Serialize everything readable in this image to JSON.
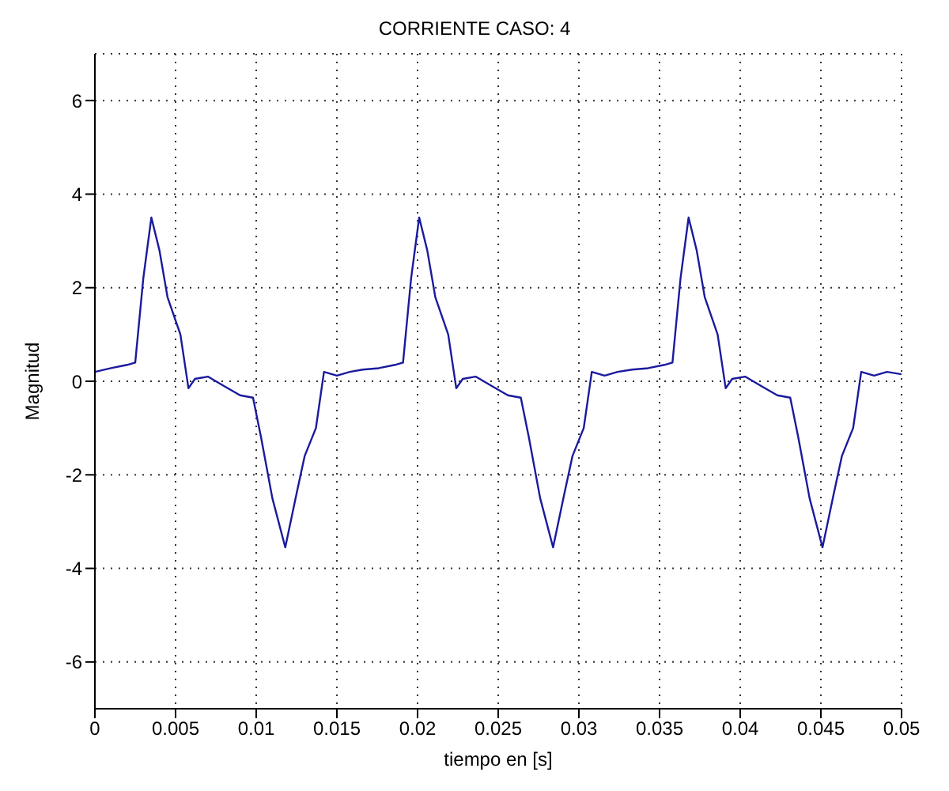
{
  "chart_data": {
    "type": "line",
    "title": "CORRIENTE CASO: 4",
    "xlabel": "tiempo en [s]",
    "ylabel": "Magnitud",
    "xlim": [
      0,
      0.05
    ],
    "xticks": [
      0,
      0.005,
      0.01,
      0.015,
      0.02,
      0.025,
      0.03,
      0.035,
      0.04,
      0.045,
      0.05
    ],
    "ylim": [
      -7,
      7
    ],
    "yticks": [
      -6,
      -4,
      -2,
      0,
      2,
      4,
      6
    ],
    "grid": true,
    "legend": false,
    "x": [
      0,
      0.001,
      0.002,
      0.0025,
      0.003,
      0.0035,
      0.004,
      0.0045,
      0.005,
      0.0053,
      0.0058,
      0.0062,
      0.007,
      0.008,
      0.009,
      0.0098,
      0.0103,
      0.011,
      0.0118,
      0.0125,
      0.013,
      0.0137,
      0.0142,
      0.015,
      0.0158,
      0.0166,
      0.0176,
      0.0186,
      0.0191,
      0.0196,
      0.0201,
      0.0206,
      0.0211,
      0.0216,
      0.0219,
      0.0224,
      0.0228,
      0.0236,
      0.0246,
      0.0256,
      0.0264,
      0.0269,
      0.0276,
      0.0284,
      0.0291,
      0.0296,
      0.0303,
      0.0308,
      0.0316,
      0.0324,
      0.0333,
      0.0343,
      0.0353,
      0.0358,
      0.0363,
      0.0368,
      0.0373,
      0.0378,
      0.0383,
      0.0386,
      0.0391,
      0.0395,
      0.0403,
      0.0413,
      0.0423,
      0.0431,
      0.0436,
      0.0443,
      0.0451,
      0.0458,
      0.0463,
      0.047,
      0.0475,
      0.0483,
      0.0491,
      0.05
    ],
    "series": [
      {
        "color": "#1a1a9e",
        "values": [
          0.2,
          0.28,
          0.35,
          0.4,
          2.2,
          3.5,
          2.8,
          1.8,
          1.3,
          1.0,
          -0.15,
          0.05,
          0.1,
          -0.1,
          -0.3,
          -0.35,
          -1.2,
          -2.5,
          -3.55,
          -2.4,
          -1.6,
          -1.0,
          0.2,
          0.12,
          0.2,
          0.25,
          0.28,
          0.35,
          0.4,
          2.2,
          3.5,
          2.8,
          1.8,
          1.3,
          1.0,
          -0.15,
          0.05,
          0.1,
          -0.1,
          -0.3,
          -0.35,
          -1.2,
          -2.5,
          -3.55,
          -2.4,
          -1.6,
          -1.0,
          0.2,
          0.12,
          0.2,
          0.25,
          0.28,
          0.35,
          0.4,
          2.2,
          3.5,
          2.8,
          1.8,
          1.3,
          1.0,
          -0.15,
          0.05,
          0.1,
          -0.1,
          -0.3,
          -0.35,
          -1.2,
          -2.5,
          -3.55,
          -2.4,
          -1.6,
          -1.0,
          0.2,
          0.12,
          0.2,
          0.15
        ]
      }
    ]
  }
}
